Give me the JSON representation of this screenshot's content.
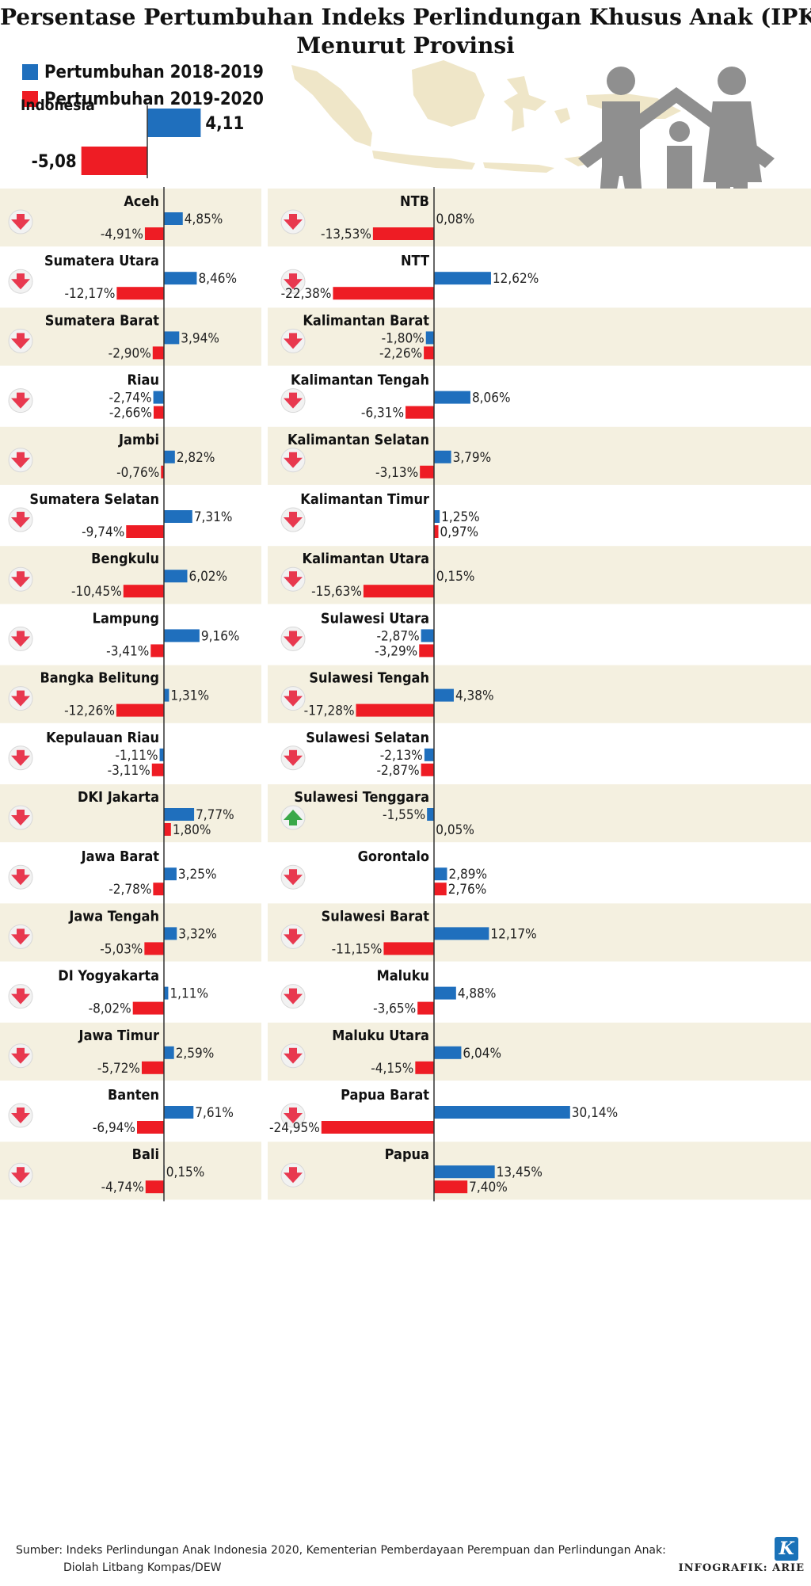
{
  "title_line1": "Persentase Pertumbuhan Indeks Perlindungan Khusus Anak (IPKA)",
  "title_line2": "Menurut Provinsi",
  "legend": [
    {
      "label": "Pertumbuhan 2018-2019",
      "color": "#1f6fbd"
    },
    {
      "label": "Pertumbuhan 2019-2020",
      "color": "#ee1c24"
    }
  ],
  "source_line1": "Sumber: Indeks Perlindungan Anak Indonesia 2020, Kementerian Pemberdayaan Perempuan dan Perlindungan Anak:",
  "source_line2": "Diolah Litbang Kompas/DEW",
  "credit": "INFOGRAFIK: ARIE",
  "logo": "K",
  "chart_data": {
    "type": "bar",
    "series": [
      "Pertumbuhan 2018-2019",
      "Pertumbuhan 2019-2020"
    ],
    "colors": {
      "s2019": "#1f6fbd",
      "s2020": "#ee1c24",
      "row_shade": "#f4f0e0",
      "arrow_down": "#e8384f",
      "arrow_up": "#3aa84a"
    },
    "indonesia": {
      "name": "Indonesia",
      "s2019": 4.11,
      "label2019": "4,11",
      "s2020": -5.08,
      "label2020": "-5,08"
    },
    "provinces": [
      {
        "name": "Aceh",
        "s2019": 4.85,
        "label2019": "4,85%",
        "s2020": -4.91,
        "label2020": "-4,91%",
        "trend": "down"
      },
      {
        "name": "Sumatera Utara",
        "s2019": 8.46,
        "label2019": "8,46%",
        "s2020": -12.17,
        "label2020": "-12,17%",
        "trend": "down"
      },
      {
        "name": "Sumatera Barat",
        "s2019": 3.94,
        "label2019": "3,94%",
        "s2020": -2.9,
        "label2020": "-2,90%",
        "trend": "down"
      },
      {
        "name": "Riau",
        "s2019": -2.74,
        "label2019": "-2,74%",
        "s2020": -2.66,
        "label2020": "-2,66%",
        "trend": "down"
      },
      {
        "name": "Jambi",
        "s2019": 2.82,
        "label2019": "2,82%",
        "s2020": -0.76,
        "label2020": "-0,76%",
        "trend": "down"
      },
      {
        "name": "Sumatera Selatan",
        "s2019": 7.31,
        "label2019": "7,31%",
        "s2020": -9.74,
        "label2020": "-9,74%",
        "trend": "down"
      },
      {
        "name": "Bengkulu",
        "s2019": 6.02,
        "label2019": "6,02%",
        "s2020": -10.45,
        "label2020": "-10,45%",
        "trend": "down"
      },
      {
        "name": "Lampung",
        "s2019": 9.16,
        "label2019": "9,16%",
        "s2020": -3.41,
        "label2020": "-3,41%",
        "trend": "down"
      },
      {
        "name": "Bangka Belitung",
        "s2019": 1.31,
        "label2019": "1,31%",
        "s2020": -12.26,
        "label2020": "-12,26%",
        "trend": "down"
      },
      {
        "name": "Kepulauan Riau",
        "s2019": -1.11,
        "label2019": "-1,11%",
        "s2020": -3.11,
        "label2020": "-3,11%",
        "trend": "down"
      },
      {
        "name": "DKI Jakarta",
        "s2019": 7.77,
        "label2019": "7,77%",
        "s2020": 1.8,
        "label2020": "1,80%",
        "trend": "down"
      },
      {
        "name": "Jawa Barat",
        "s2019": 3.25,
        "label2019": "3,25%",
        "s2020": -2.78,
        "label2020": "-2,78%",
        "trend": "down"
      },
      {
        "name": "Jawa Tengah",
        "s2019": 3.32,
        "label2019": "3,32%",
        "s2020": -5.03,
        "label2020": "-5,03%",
        "trend": "down"
      },
      {
        "name": "DI Yogyakarta",
        "s2019": 1.11,
        "label2019": "1,11%",
        "s2020": -8.02,
        "label2020": "-8,02%",
        "trend": "down"
      },
      {
        "name": "Jawa Timur",
        "s2019": 2.59,
        "label2019": "2,59%",
        "s2020": -5.72,
        "label2020": "-5,72%",
        "trend": "down"
      },
      {
        "name": "Banten",
        "s2019": 7.61,
        "label2019": "7,61%",
        "s2020": -6.94,
        "label2020": "-6,94%",
        "trend": "down"
      },
      {
        "name": "Bali",
        "s2019": 0.15,
        "label2019": "0,15%",
        "s2020": -4.74,
        "label2020": "-4,74%",
        "trend": "down"
      },
      {
        "name": "NTB",
        "s2019": 0.08,
        "label2019": "0,08%",
        "s2020": -13.53,
        "label2020": "-13,53%",
        "trend": "down"
      },
      {
        "name": "NTT",
        "s2019": 12.62,
        "label2019": "12,62%",
        "s2020": -22.38,
        "label2020": "-22,38%",
        "trend": "down"
      },
      {
        "name": "Kalimantan Barat",
        "s2019": -1.8,
        "label2019": "-1,80%",
        "s2020": -2.26,
        "label2020": "-2,26%",
        "trend": "down"
      },
      {
        "name": "Kalimantan Tengah",
        "s2019": 8.06,
        "label2019": "8,06%",
        "s2020": -6.31,
        "label2020": "-6,31%",
        "trend": "down"
      },
      {
        "name": "Kalimantan Selatan",
        "s2019": 3.79,
        "label2019": "3,79%",
        "s2020": -3.13,
        "label2020": "-3,13%",
        "trend": "down"
      },
      {
        "name": "Kalimantan Timur",
        "s2019": 1.25,
        "label2019": "1,25%",
        "s2020": 0.97,
        "label2020": "0,97%",
        "trend": "down"
      },
      {
        "name": "Kalimantan Utara",
        "s2019": 0.15,
        "label2019": "0,15%",
        "s2020": -15.63,
        "label2020": "-15,63%",
        "trend": "down"
      },
      {
        "name": "Sulawesi Utara",
        "s2019": -2.87,
        "label2019": "-2,87%",
        "s2020": -3.29,
        "label2020": "-3,29%",
        "trend": "down"
      },
      {
        "name": "Sulawesi Tengah",
        "s2019": 4.38,
        "label2019": "4,38%",
        "s2020": -17.28,
        "label2020": "-17,28%",
        "trend": "down"
      },
      {
        "name": "Sulawesi Selatan",
        "s2019": -2.13,
        "label2019": "-2,13%",
        "s2020": -2.87,
        "label2020": "-2,87%",
        "trend": "down"
      },
      {
        "name": "Sulawesi Tenggara",
        "s2019": -1.55,
        "label2019": "-1,55%",
        "s2020": 0.05,
        "label2020": "0,05%",
        "trend": "up"
      },
      {
        "name": "Gorontalo",
        "s2019": 2.89,
        "label2019": "2,89%",
        "s2020": 2.76,
        "label2020": "2,76%",
        "trend": "down"
      },
      {
        "name": "Sulawesi Barat",
        "s2019": 12.17,
        "label2019": "12,17%",
        "s2020": -11.15,
        "label2020": "-11,15%",
        "trend": "down"
      },
      {
        "name": "Maluku",
        "s2019": 4.88,
        "label2019": "4,88%",
        "s2020": -3.65,
        "label2020": "-3,65%",
        "trend": "down"
      },
      {
        "name": "Maluku Utara",
        "s2019": 6.04,
        "label2019": "6,04%",
        "s2020": -4.15,
        "label2020": "-4,15%",
        "trend": "down"
      },
      {
        "name": "Papua Barat",
        "s2019": 30.14,
        "label2019": "30,14%",
        "s2020": -24.95,
        "label2020": "-24,95%",
        "trend": "down"
      },
      {
        "name": "Papua",
        "s2019": 13.45,
        "label2019": "13,45%",
        "s2020": 7.4,
        "label2020": "7,40%",
        "trend": "down"
      }
    ]
  }
}
